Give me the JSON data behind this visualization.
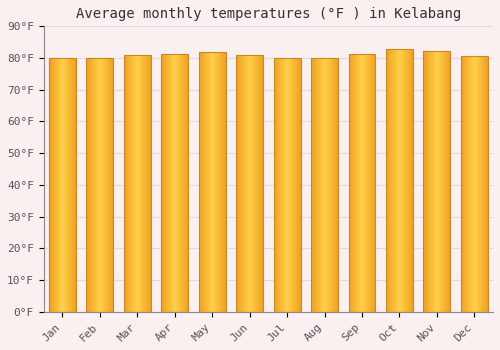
{
  "title": "Average monthly temperatures (°F ) in Kelabang",
  "months": [
    "Jan",
    "Feb",
    "Mar",
    "Apr",
    "May",
    "Jun",
    "Jul",
    "Aug",
    "Sep",
    "Oct",
    "Nov",
    "Dec"
  ],
  "values": [
    80.1,
    80.1,
    81.0,
    81.3,
    81.9,
    80.8,
    79.9,
    80.1,
    81.3,
    82.8,
    82.2,
    80.6
  ],
  "bar_color_center": "#FFD04A",
  "bar_color_edge": "#F0A020",
  "bar_outline_color": "#C8882A",
  "background_color": "#FAF0F0",
  "grid_color": "#E0D8E8",
  "ytick_labels": [
    "0°F",
    "10°F",
    "20°F",
    "30°F",
    "40°F",
    "50°F",
    "60°F",
    "70°F",
    "80°F",
    "90°F"
  ],
  "ytick_values": [
    0,
    10,
    20,
    30,
    40,
    50,
    60,
    70,
    80,
    90
  ],
  "ylim": [
    0,
    90
  ],
  "title_fontsize": 10,
  "tick_fontsize": 8,
  "font_family": "monospace",
  "bar_width": 0.72,
  "n_gradient_steps": 60
}
